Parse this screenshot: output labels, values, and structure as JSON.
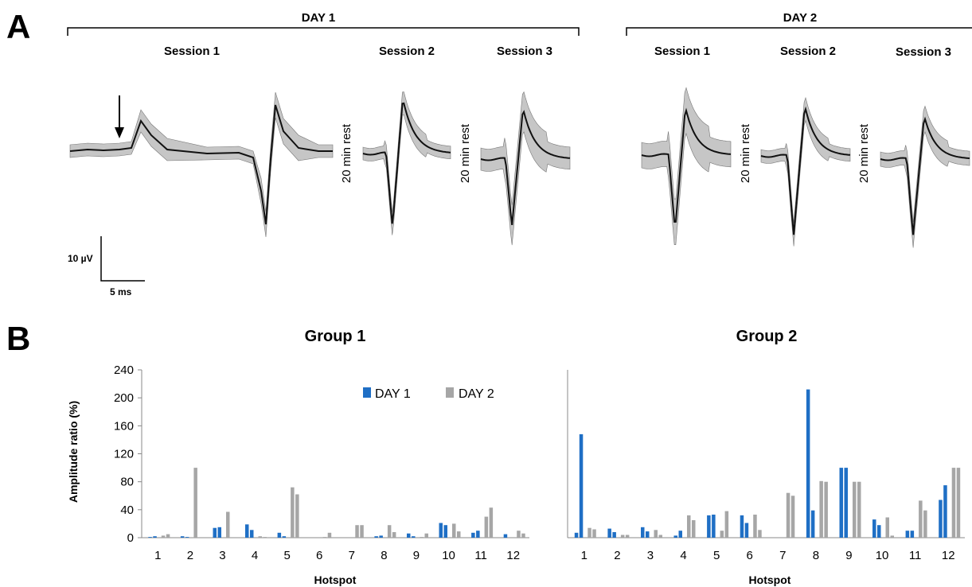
{
  "panel_a": {
    "letter": "A",
    "scale_bar": {
      "y_label": "10 µV",
      "x_label": "5 ms"
    },
    "days": [
      {
        "label": "DAY 1",
        "sessions": [
          "Session 1",
          "Session 2",
          "Session 3"
        ]
      },
      {
        "label": "DAY 2",
        "sessions": [
          "Session 1",
          "Session 2",
          "Session 3"
        ]
      }
    ],
    "rest_label": "20 min rest"
  },
  "panel_b": {
    "letter": "B",
    "legend": [
      "DAY 1",
      "DAY 2"
    ],
    "colors": {
      "day1": "#1f6fc5",
      "day2": "#a6a6a6"
    }
  },
  "chart_data": [
    {
      "type": "bar",
      "title": "Group 1",
      "xlabel": "Hotspot",
      "ylabel": "Amplitude ratio (%)",
      "ylim": [
        0,
        240
      ],
      "yticks": [
        0,
        40,
        80,
        120,
        160,
        200,
        240
      ],
      "categories": [
        "1",
        "2",
        "3",
        "4",
        "5",
        "6",
        "7",
        "8",
        "9",
        "10",
        "11",
        "12"
      ],
      "series": [
        {
          "name": "DAY 1",
          "bars_per_category": [
            [
              1,
              2
            ],
            [
              2,
              1
            ],
            [
              14,
              15
            ],
            [
              19,
              11
            ],
            [
              7,
              2
            ],
            [
              0,
              0
            ],
            [
              0,
              0
            ],
            [
              2,
              3
            ],
            [
              6,
              2
            ],
            [
              21,
              18
            ],
            [
              7,
              10
            ],
            [
              5,
              0
            ]
          ]
        },
        {
          "name": "DAY 2",
          "bars_per_category": [
            [
              3,
              5
            ],
            [
              100,
              0
            ],
            [
              37,
              0
            ],
            [
              2,
              1
            ],
            [
              72,
              62
            ],
            [
              1,
              7
            ],
            [
              18,
              18
            ],
            [
              18,
              8
            ],
            [
              1,
              6
            ],
            [
              20,
              9
            ],
            [
              30,
              43
            ],
            [
              10,
              6
            ]
          ]
        }
      ]
    },
    {
      "type": "bar",
      "title": "Group 2",
      "xlabel": "Hotspot",
      "ylabel": "",
      "ylim": [
        0,
        240
      ],
      "categories": [
        "1",
        "2",
        "3",
        "4",
        "5",
        "6",
        "7",
        "8",
        "9",
        "10",
        "11",
        "12"
      ],
      "series": [
        {
          "name": "DAY 1",
          "bars_per_category": [
            [
              7,
              148
            ],
            [
              13,
              8
            ],
            [
              15,
              9
            ],
            [
              3,
              10
            ],
            [
              32,
              33
            ],
            [
              32,
              21
            ],
            [
              0,
              0
            ],
            [
              212,
              39
            ],
            [
              100,
              100
            ],
            [
              26,
              18
            ],
            [
              10,
              10
            ],
            [
              54,
              75
            ]
          ]
        },
        {
          "name": "DAY 2",
          "bars_per_category": [
            [
              14,
              12
            ],
            [
              4,
              4
            ],
            [
              11,
              4
            ],
            [
              32,
              25
            ],
            [
              10,
              38
            ],
            [
              33,
              11
            ],
            [
              64,
              60
            ],
            [
              81,
              80
            ],
            [
              80,
              80
            ],
            [
              29,
              3
            ],
            [
              53,
              39
            ],
            [
              100,
              100
            ]
          ]
        }
      ]
    }
  ]
}
